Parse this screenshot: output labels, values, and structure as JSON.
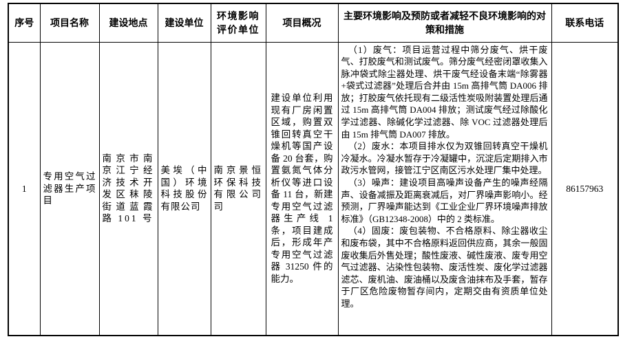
{
  "table": {
    "headers": {
      "no": "序号",
      "project_name": "项目名称",
      "location": "建设地点",
      "builder": "建设单位",
      "eia_unit": "环境影响评价单位",
      "overview": "项目概况",
      "measures": "主要环境影响及预防或者减轻不良环境影响的对策和措施",
      "phone": "联系电话"
    },
    "row": {
      "no": "1",
      "project_name": "专用空气过滤器生产项目",
      "location": "南京市南京江宁经济技术开发区秣陵街道蓝霞路 101 号",
      "builder": "美埃（中国）环境科技股份有限公司",
      "eia_unit": "南京景恒环保科技有限公司司",
      "overview": "建设单位利用现有厂房闲置区域，购置双锥回转真空干燥机等国产设备 20 台套，购置氨氮气体分析仪等进口设备 11 台，新建专用空气过滤器生产线 1 条，项目建成后，形成年产专用空气过滤器 31250 件的能力。",
      "measures": [
        "（1）废气：项目运营过程中筛分废气、烘干废气、打胶废气和测试废气。筛分废气经密闭罩收集入脉冲袋式除尘器处理、烘干废气经设备末端“除雾器+袋式过滤器”处理后合并由 15m 高排气筒 DA006 排放；打胶废气依托现有二级活性炭吸附装置处理后通过 15m 高排气筒 DA004 排放；测试废气经过除酸化学过滤器、除碱化学过滤器、除 VOC 过滤器处理后由 15m 排气筒 DA007 排放。",
        "（2）废水：本项目排水仅为双锥回转真空干燥机冷凝水。冷凝水暂存于冷凝罐中，沉淀后定期排入市政污水管网，接管江宁区南区污水处理厂集中处理。",
        "（3）噪声：建设项目高噪声设备产生的噪声经隔声、设备减振及距离衰减后，对厂界噪声影响小。经预测，厂界噪声能达到《工业企业厂界环境噪声排放标准》（GB12348-2008）中的 2 类标准。",
        "（4）固废：废包装物、不合格原料、除尘器收尘和废布袋，其中不合格原料返回供应商，其余一般固废收集后外售处理；酸性废液、碱性废液、废专用空气过滤器、沾染性包装物、废活性炭、废化学过滤器滤芯、废机油、废油桶以及废含油抹布及手套，暂存于厂区危险废物暂存间内，定期交由有资质单位处理。"
      ],
      "phone": "86157963"
    }
  }
}
